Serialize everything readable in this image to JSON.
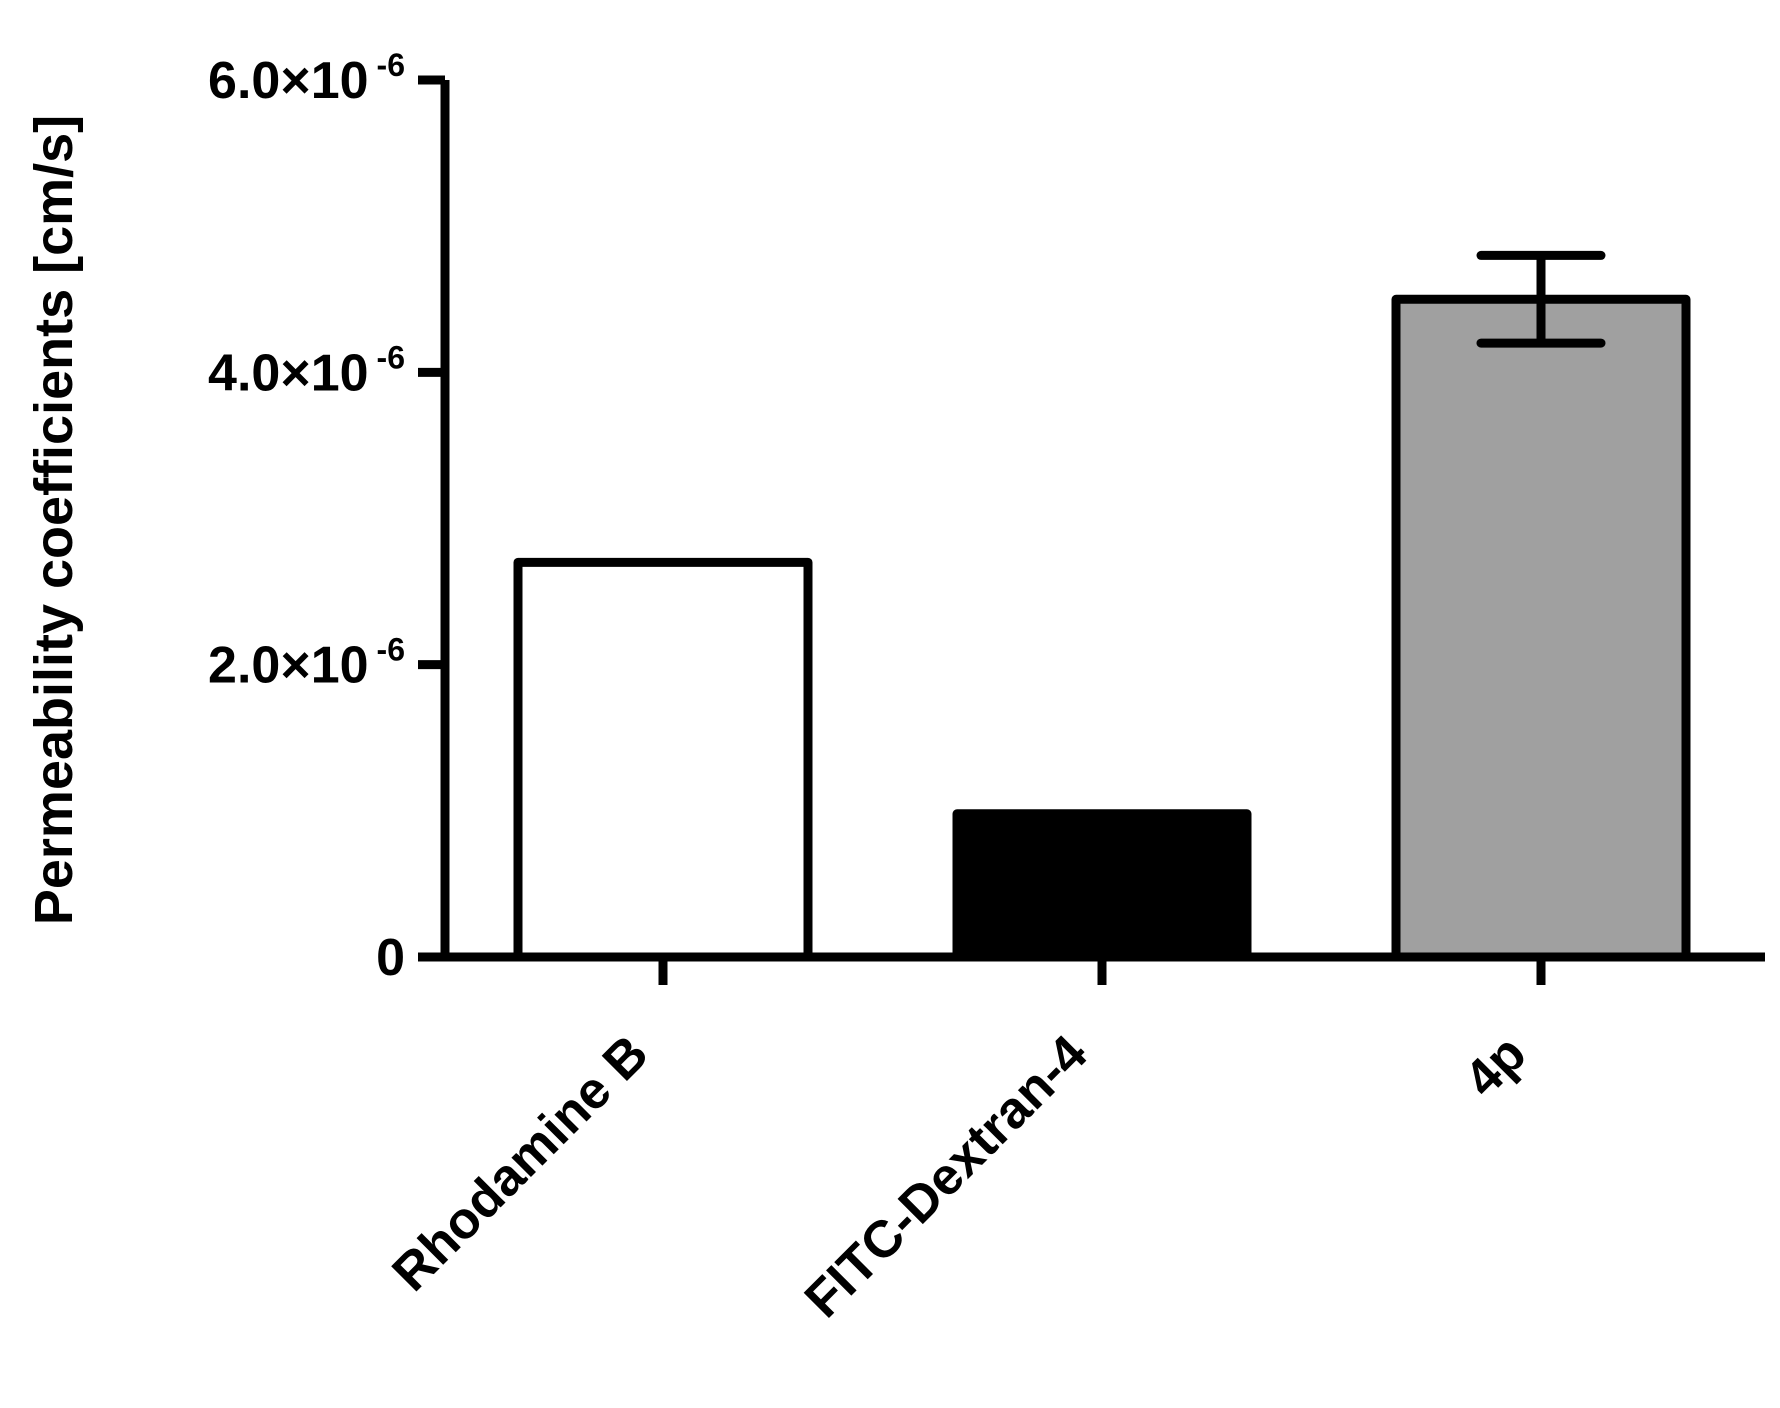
{
  "chart_data": {
    "type": "bar",
    "title": "",
    "xlabel": "",
    "ylabel": "Permeability coefficients [cm/s]",
    "ylim": [
      0,
      6e-06
    ],
    "yticks": [
      {
        "value": 0,
        "mantissa": "0",
        "exponent": ""
      },
      {
        "value": 2e-06,
        "mantissa": "2.0×10",
        "exponent": "-6"
      },
      {
        "value": 4e-06,
        "mantissa": "4.0×10",
        "exponent": "-6"
      },
      {
        "value": 6e-06,
        "mantissa": "6.0×10",
        "exponent": "-6"
      }
    ],
    "categories": [
      "Rhodamine B",
      "FITC-Dextran-4",
      "4p"
    ],
    "values": [
      2.7e-06,
      9.8e-07,
      4.5e-06
    ],
    "error": [
      null,
      null,
      {
        "upper": 4.8e-06,
        "lower": 4.2e-06
      }
    ],
    "bar_colors": [
      "#ffffff",
      "#000000",
      "#a0a0a0"
    ],
    "grid": false,
    "legend": "none"
  }
}
